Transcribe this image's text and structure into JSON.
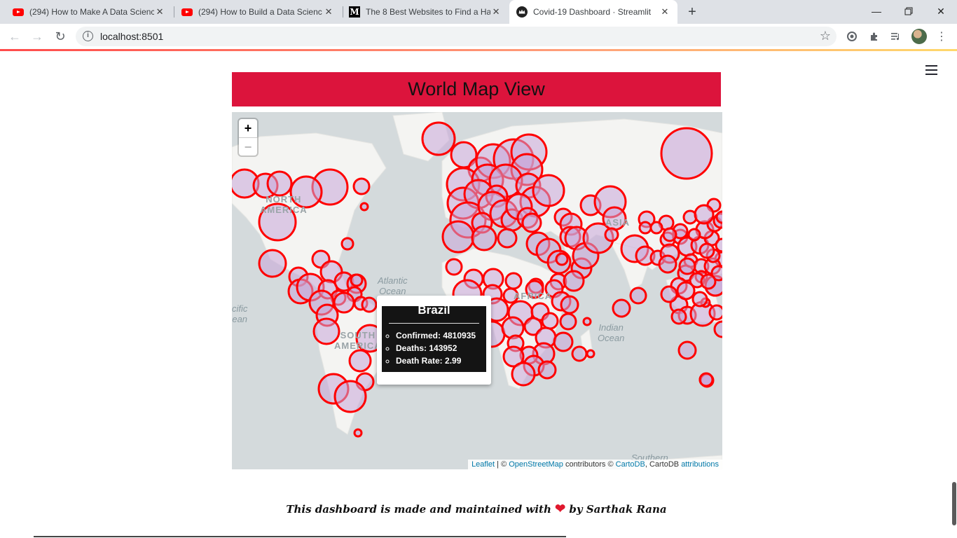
{
  "browser": {
    "tabs": [
      {
        "title": "(294) How to Make A Data Scienc",
        "favicon": "youtube-icon",
        "active": false
      },
      {
        "title": "(294) How to Build a Data Scienc",
        "favicon": "youtube-icon",
        "active": false
      },
      {
        "title": "The 8 Best Websites to Find a Ha",
        "favicon": "medium-icon",
        "active": false
      },
      {
        "title": "Covid-19 Dashboard · Streamlit",
        "favicon": "streamlit-crown-icon",
        "active": true
      }
    ],
    "url": "localhost:8501"
  },
  "page": {
    "header_title": "World Map View",
    "header_color": "#dc143c",
    "map": {
      "continent_labels": {
        "north_america": "NORTH\nAMERICA",
        "south_america": "SOUTH\nAMERICA",
        "asia": "ASIA",
        "africa": "AFRICA"
      },
      "ocean_labels": {
        "atlantic": "Atlantic\nOcean",
        "pacific": "cific\nean",
        "indian": "Indian\nOcean",
        "southern": "Southern"
      },
      "zoom_in": "+",
      "zoom_out": "−",
      "tooltip": {
        "country": "Brazil",
        "confirmed": "Confirmed: 4810935",
        "deaths": "Deaths: 143952",
        "death_rate": "Death Rate: 2.99"
      },
      "attribution": {
        "leaflet": "Leaflet",
        "sep1": " | © ",
        "osm": "OpenStreetMap",
        "mid": " contributors © ",
        "carto": "CartoDB",
        "mid2": ", CartoDB ",
        "attr": "attributions"
      },
      "marker_color": "#ff0000",
      "marker_fill": "#c9a6d8"
    },
    "footer": {
      "prefix": "This dashboard is made and maintained with",
      "heart": "❤",
      "suffix": "by Sarthak Rana"
    }
  }
}
